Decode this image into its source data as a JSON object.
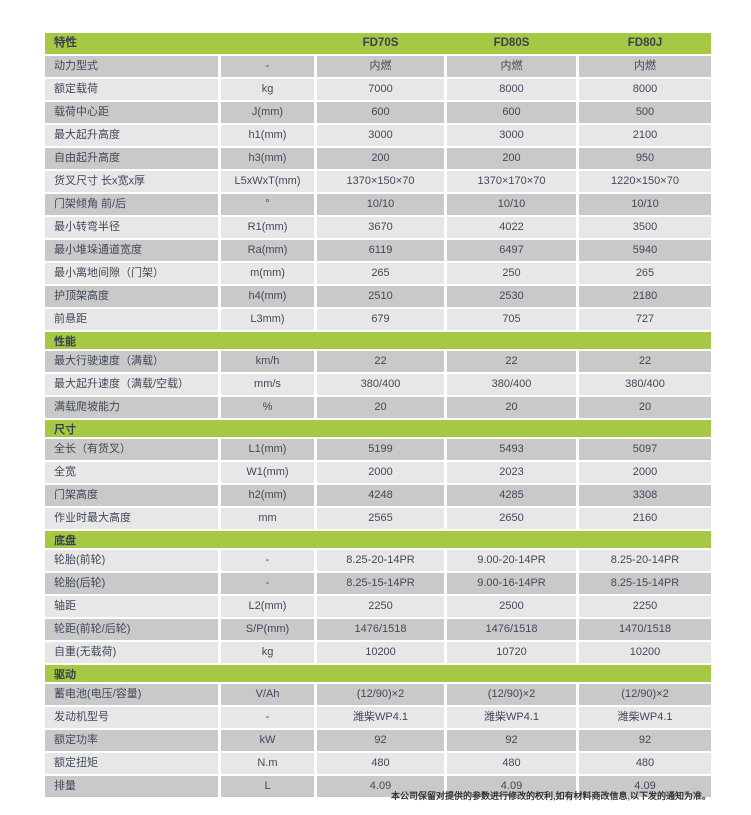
{
  "colors": {
    "accent_green": "#a5c845",
    "row_dark": "#c9c9c9",
    "row_light": "#e7e7e7",
    "text": "#414859"
  },
  "table": {
    "header": {
      "feature_label": "特性",
      "unit_label": "",
      "models": [
        "FD70S",
        "FD80S",
        "FD80J"
      ]
    },
    "sections": [
      {
        "title": "",
        "rows": [
          {
            "label": "动力型式",
            "unit": "-",
            "values": [
              "内燃",
              "内燃",
              "内燃"
            ],
            "shade": "dark"
          },
          {
            "label": "额定载荷",
            "unit": "kg",
            "values": [
              "7000",
              "8000",
              "8000"
            ],
            "shade": "light"
          },
          {
            "label": "载荷中心距",
            "unit": "J(mm)",
            "values": [
              "600",
              "600",
              "500"
            ],
            "shade": "dark"
          },
          {
            "label": "最大起升高度",
            "unit": "h1(mm)",
            "values": [
              "3000",
              "3000",
              "2100"
            ],
            "shade": "light"
          },
          {
            "label": "自由起升高度",
            "unit": "h3(mm)",
            "values": [
              "200",
              "200",
              "950"
            ],
            "shade": "dark"
          },
          {
            "label": "货叉尺寸 长x宽x厚",
            "unit": "L5xWxT(mm)",
            "values": [
              "1370×150×70",
              "1370×170×70",
              "1220×150×70"
            ],
            "shade": "light"
          },
          {
            "label": "门架倾角 前/后",
            "unit": "°",
            "values": [
              "10/10",
              "10/10",
              "10/10"
            ],
            "shade": "dark"
          },
          {
            "label": "最小转弯半径",
            "unit": "R1(mm)",
            "values": [
              "3670",
              "4022",
              "3500"
            ],
            "shade": "light"
          },
          {
            "label": "最小堆垛通道宽度",
            "unit": "Ra(mm)",
            "values": [
              "6119",
              "6497",
              "5940"
            ],
            "shade": "dark"
          },
          {
            "label": "最小离地间隙（门架）",
            "unit": "m(mm)",
            "values": [
              "265",
              "250",
              "265"
            ],
            "shade": "light"
          },
          {
            "label": "护顶架高度",
            "unit": "h4(mm)",
            "values": [
              "2510",
              "2530",
              "2180"
            ],
            "shade": "dark"
          },
          {
            "label": "前悬距",
            "unit": "L3mm)",
            "values": [
              "679",
              "705",
              "727"
            ],
            "shade": "light"
          }
        ]
      },
      {
        "title": "性能",
        "rows": [
          {
            "label": "最大行驶速度（满载）",
            "unit": "km/h",
            "values": [
              "22",
              "22",
              "22"
            ],
            "shade": "dark"
          },
          {
            "label": "最大起升速度（满载/空载）",
            "unit": "mm/s",
            "values": [
              "380/400",
              "380/400",
              "380/400"
            ],
            "shade": "light"
          },
          {
            "label": "满载爬坡能力",
            "unit": "%",
            "values": [
              "20",
              "20",
              "20"
            ],
            "shade": "dark"
          }
        ]
      },
      {
        "title": "尺寸",
        "rows": [
          {
            "label": "全长（有货叉）",
            "unit": "L1(mm)",
            "values": [
              "5199",
              "5493",
              "5097"
            ],
            "shade": "dark"
          },
          {
            "label": "全宽",
            "unit": "W1(mm)",
            "values": [
              "2000",
              "2023",
              "2000"
            ],
            "shade": "light"
          },
          {
            "label": "门架高度",
            "unit": "h2(mm)",
            "values": [
              "4248",
              "4285",
              "3308"
            ],
            "shade": "dark"
          },
          {
            "label": "作业时最大高度",
            "unit": "mm",
            "values": [
              "2565",
              "2650",
              "2160"
            ],
            "shade": "light"
          }
        ]
      },
      {
        "title": "底盘",
        "rows": [
          {
            "label": "轮胎(前轮)",
            "unit": "-",
            "values": [
              "8.25-20-14PR",
              "9.00-20-14PR",
              "8.25-20-14PR"
            ],
            "shade": "light"
          },
          {
            "label": "轮胎(后轮)",
            "unit": "-",
            "values": [
              "8.25-15-14PR",
              "9.00-16-14PR",
              "8.25-15-14PR"
            ],
            "shade": "dark"
          },
          {
            "label": "轴距",
            "unit": "L2(mm)",
            "values": [
              "2250",
              "2500",
              "2250"
            ],
            "shade": "light"
          },
          {
            "label": "轮距(前轮/后轮)",
            "unit": "S/P(mm)",
            "values": [
              "1476/1518",
              "1476/1518",
              "1470/1518"
            ],
            "shade": "dark"
          },
          {
            "label": "自重(无载荷)",
            "unit": "kg",
            "values": [
              "10200",
              "10720",
              "10200"
            ],
            "shade": "light"
          }
        ]
      },
      {
        "title": "驱动",
        "rows": [
          {
            "label": "蓄电池(电压/容量)",
            "unit": "V/Ah",
            "values": [
              "(12/90)×2",
              "(12/90)×2",
              "(12/90)×2"
            ],
            "shade": "dark"
          },
          {
            "label": "发动机型号",
            "unit": "-",
            "values": [
              "潍柴WP4.1",
              "潍柴WP4.1",
              "潍柴WP4.1"
            ],
            "shade": "light"
          },
          {
            "label": "额定功率",
            "unit": "kW",
            "values": [
              "92",
              "92",
              "92"
            ],
            "shade": "dark"
          },
          {
            "label": "额定扭矩",
            "unit": "N.m",
            "values": [
              "480",
              "480",
              "480"
            ],
            "shade": "light"
          },
          {
            "label": "排量",
            "unit": "L",
            "values": [
              "4.09",
              "4.09",
              "4.09"
            ],
            "shade": "dark"
          }
        ]
      }
    ]
  },
  "footer": {
    "note": "本公司保留对提供的参数进行修改的权利,如有材料商改信息,以下发的通知为准。"
  }
}
